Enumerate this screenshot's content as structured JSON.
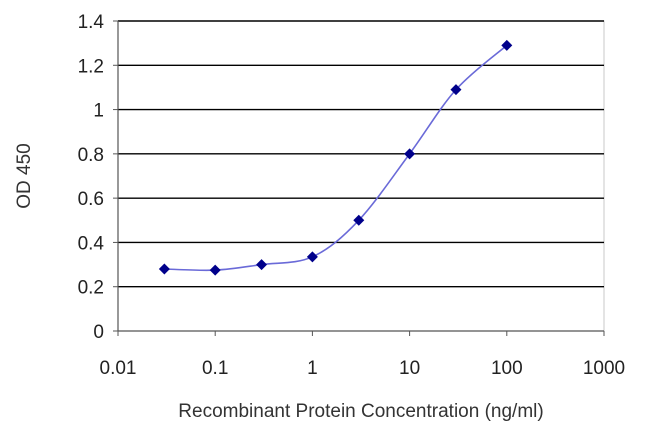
{
  "chart_data": {
    "type": "line",
    "xscale": "log",
    "xlabel": "Recombinant Protein Concentration (ng/ml)",
    "ylabel": "OD 450",
    "xlim": [
      0.01,
      1000
    ],
    "ylim": [
      0,
      1.4
    ],
    "x_ticks": [
      0.01,
      0.1,
      1,
      10,
      100,
      1000
    ],
    "x_tick_labels": [
      "0.01",
      "0.1",
      "1",
      "10",
      "100",
      "1000"
    ],
    "y_ticks": [
      0,
      0.2,
      0.4,
      0.6,
      0.8,
      1,
      1.2,
      1.4
    ],
    "y_tick_labels": [
      "0",
      "0.2",
      "0.4",
      "0.6",
      "0.8",
      "1",
      "1.2",
      "1.4"
    ],
    "grid": "horizontal",
    "legend": "none",
    "series": [
      {
        "x": [
          0.03,
          0.1,
          0.3,
          1,
          3,
          10,
          30,
          100
        ],
        "y": [
          0.28,
          0.275,
          0.3,
          0.335,
          0.5,
          0.8,
          1.09,
          1.29
        ],
        "color": "#00008b",
        "line_color": "#6a6ad8"
      }
    ],
    "colors": {
      "grid": "#000000",
      "axis": "#555555",
      "frame": "#c8c8c8"
    }
  }
}
